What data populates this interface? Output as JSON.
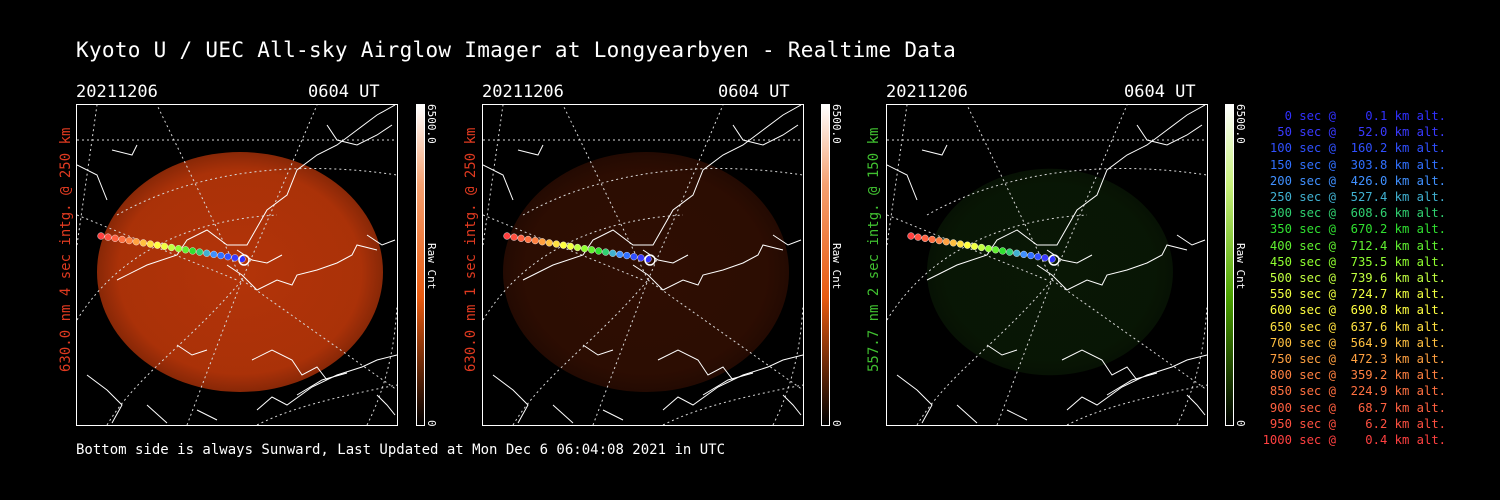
{
  "title": "Kyoto U / UEC All-sky Airglow Imager at Longyearbyen - Realtime Data",
  "footer": "Bottom side is always Sunward, Last Updated at Mon Dec  6 06:04:08 2021 in UTC",
  "panels": [
    {
      "date": "20211206",
      "time": "0604 UT",
      "ylabel": "630.0 nm 4 sec intg. @ 250 km",
      "label_color": "#e03a20",
      "cbar_max": "6500.0",
      "cbar_min": "0",
      "cbar_label": "Raw Cnt",
      "cbar_color": "#e85a10",
      "cbar_light": "#f5a070",
      "glow_level": 0.85
    },
    {
      "date": "20211206",
      "time": "0604 UT",
      "ylabel": "630.0 nm 1 sec intg. @ 250 km",
      "label_color": "#e03a20",
      "cbar_max": "6500.0",
      "cbar_min": "0",
      "cbar_label": "Raw Cnt",
      "cbar_color": "#e85a10",
      "cbar_light": "#f5a070",
      "glow_level": 0.22
    },
    {
      "date": "20211206",
      "time": "0604 UT",
      "ylabel": "557.7 nm 2 sec intg. @ 150 km",
      "label_color": "#40c030",
      "cbar_max": "6500.0",
      "cbar_min": "0",
      "cbar_label": "Raw Cnt",
      "cbar_color": "#4aa000",
      "cbar_light": "#c8f07a",
      "glow_level": 0.18
    }
  ],
  "trajectory": [
    {
      "label": "   0 sec @    0.1 km alt.",
      "color": "#3030ff"
    },
    {
      "label": "  50 sec @   52.0 km alt.",
      "color": "#3a3aff"
    },
    {
      "label": " 100 sec @  160.2 km alt.",
      "color": "#3050ff"
    },
    {
      "label": " 150 sec @  303.8 km alt.",
      "color": "#3070ff"
    },
    {
      "label": " 200 sec @  426.0 km alt.",
      "color": "#4090ff"
    },
    {
      "label": " 250 sec @  527.4 km alt.",
      "color": "#40b0d0"
    },
    {
      "label": " 300 sec @  608.6 km alt.",
      "color": "#30d070"
    },
    {
      "label": " 350 sec @  670.2 km alt.",
      "color": "#30e030"
    },
    {
      "label": " 400 sec @  712.4 km alt.",
      "color": "#60f030"
    },
    {
      "label": " 450 sec @  735.5 km alt.",
      "color": "#90ff30"
    },
    {
      "label": " 500 sec @  739.6 km alt.",
      "color": "#c0ff40"
    },
    {
      "label": " 550 sec @  724.7 km alt.",
      "color": "#f0ff40"
    },
    {
      "label": " 600 sec @  690.8 km alt.",
      "color": "#ffff40"
    },
    {
      "label": " 650 sec @  637.6 km alt.",
      "color": "#ffe040"
    },
    {
      "label": " 700 sec @  564.9 km alt.",
      "color": "#ffc040"
    },
    {
      "label": " 750 sec @  472.3 km alt.",
      "color": "#ffa040"
    },
    {
      "label": " 800 sec @  359.2 km alt.",
      "color": "#ff8040"
    },
    {
      "label": " 850 sec @  224.9 km alt.",
      "color": "#ff7040"
    },
    {
      "label": " 900 sec @   68.7 km alt.",
      "color": "#ff6040"
    },
    {
      "label": " 950 sec @    6.2 km alt.",
      "color": "#ff5040"
    },
    {
      "label": "1000 sec @    0.4 km alt.",
      "color": "#ff4040"
    }
  ],
  "chart_data": [
    {
      "type": "heatmap",
      "date": "20211206",
      "time": "0604 UT",
      "ylabel": "630.0 nm 4 sec intg. @ 250 km",
      "colorbar": {
        "label": "Raw Cnt",
        "range": [
          0,
          6500.0
        ]
      }
    },
    {
      "type": "heatmap",
      "date": "20211206",
      "time": "0604 UT",
      "ylabel": "630.0 nm 1 sec intg. @ 250 km",
      "colorbar": {
        "label": "Raw Cnt",
        "range": [
          0,
          6500.0
        ]
      }
    },
    {
      "type": "heatmap",
      "date": "20211206",
      "time": "0604 UT",
      "ylabel": "557.7 nm 2 sec intg. @ 150 km",
      "colorbar": {
        "label": "Raw Cnt",
        "range": [
          0,
          6500.0
        ]
      }
    }
  ]
}
